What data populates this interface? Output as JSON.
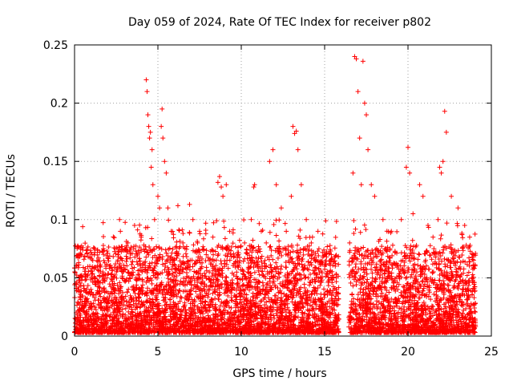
{
  "chart_data": {
    "type": "scatter",
    "title": "Day 059 of 2024, Rate Of TEC Index for receiver p802",
    "xlabel": "GPS time / hours",
    "ylabel": "ROTI / TECUs",
    "xlim": [
      0,
      25
    ],
    "ylim": [
      0,
      0.25
    ],
    "xticks": [
      0,
      5,
      10,
      15,
      20,
      25
    ],
    "yticks": [
      0,
      0.05,
      0.1,
      0.15,
      0.2,
      0.25
    ],
    "xtick_labels": [
      "0",
      "5",
      "10",
      "15",
      "20",
      "25"
    ],
    "ytick_labels": [
      "0",
      "0.05",
      "0.1",
      "0.15",
      "0.2",
      "0.25"
    ],
    "grid": true,
    "marker": "+",
    "color": "#ff0000",
    "data_gap_hours": [
      15.85,
      16.45
    ],
    "series": [
      {
        "name": "ROTI",
        "x": [
          0.05,
          0.1,
          0.3,
          0.35,
          0.6,
          1.2,
          1.5,
          2.1,
          2.7,
          2.75,
          3.2,
          3.6,
          4.0,
          4.3,
          4.35,
          4.4,
          4.45,
          4.5,
          4.55,
          4.6,
          4.65,
          4.7,
          4.8,
          5.0,
          5.1,
          5.2,
          5.25,
          5.3,
          5.4,
          5.5,
          5.6,
          5.8,
          6.2,
          6.5,
          6.9,
          7.1,
          7.5,
          7.9,
          8.3,
          8.6,
          8.7,
          8.8,
          8.9,
          9.1,
          9.3,
          9.8,
          10.2,
          10.6,
          10.75,
          10.8,
          11.2,
          11.5,
          11.7,
          11.9,
          12.1,
          12.4,
          12.7,
          13.0,
          13.1,
          13.2,
          13.3,
          13.4,
          13.6,
          13.9,
          14.2,
          14.6,
          15.0,
          15.4,
          15.7,
          16.5,
          16.7,
          16.8,
          16.9,
          17.0,
          17.1,
          17.2,
          17.3,
          17.4,
          17.5,
          17.6,
          17.8,
          18.0,
          18.5,
          19.0,
          19.6,
          19.9,
          20.0,
          20.1,
          20.3,
          20.7,
          20.9,
          21.2,
          21.5,
          21.8,
          21.9,
          22.0,
          22.1,
          22.2,
          22.3,
          22.6,
          23.0,
          23.4,
          23.7,
          23.9
        ],
        "y": [
          0.045,
          0.02,
          0.068,
          0.07,
          0.03,
          0.05,
          0.072,
          0.06,
          0.1,
          0.09,
          0.08,
          0.095,
          0.085,
          0.22,
          0.21,
          0.19,
          0.18,
          0.17,
          0.175,
          0.145,
          0.16,
          0.13,
          0.1,
          0.12,
          0.11,
          0.18,
          0.195,
          0.17,
          0.15,
          0.14,
          0.11,
          0.09,
          0.112,
          0.08,
          0.113,
          0.1,
          0.09,
          0.07,
          0.085,
          0.132,
          0.137,
          0.128,
          0.12,
          0.13,
          0.09,
          0.07,
          0.08,
          0.1,
          0.128,
          0.13,
          0.09,
          0.08,
          0.15,
          0.16,
          0.13,
          0.11,
          0.09,
          0.12,
          0.18,
          0.174,
          0.176,
          0.16,
          0.13,
          0.1,
          0.08,
          0.09,
          0.06,
          0.07,
          0.05,
          0.08,
          0.14,
          0.24,
          0.238,
          0.21,
          0.17,
          0.13,
          0.236,
          0.2,
          0.19,
          0.16,
          0.13,
          0.12,
          0.1,
          0.09,
          0.1,
          0.145,
          0.162,
          0.14,
          0.105,
          0.13,
          0.12,
          0.095,
          0.085,
          0.1,
          0.145,
          0.14,
          0.15,
          0.193,
          0.175,
          0.12,
          0.11,
          0.095,
          0.085,
          0.07
        ]
      }
    ]
  }
}
